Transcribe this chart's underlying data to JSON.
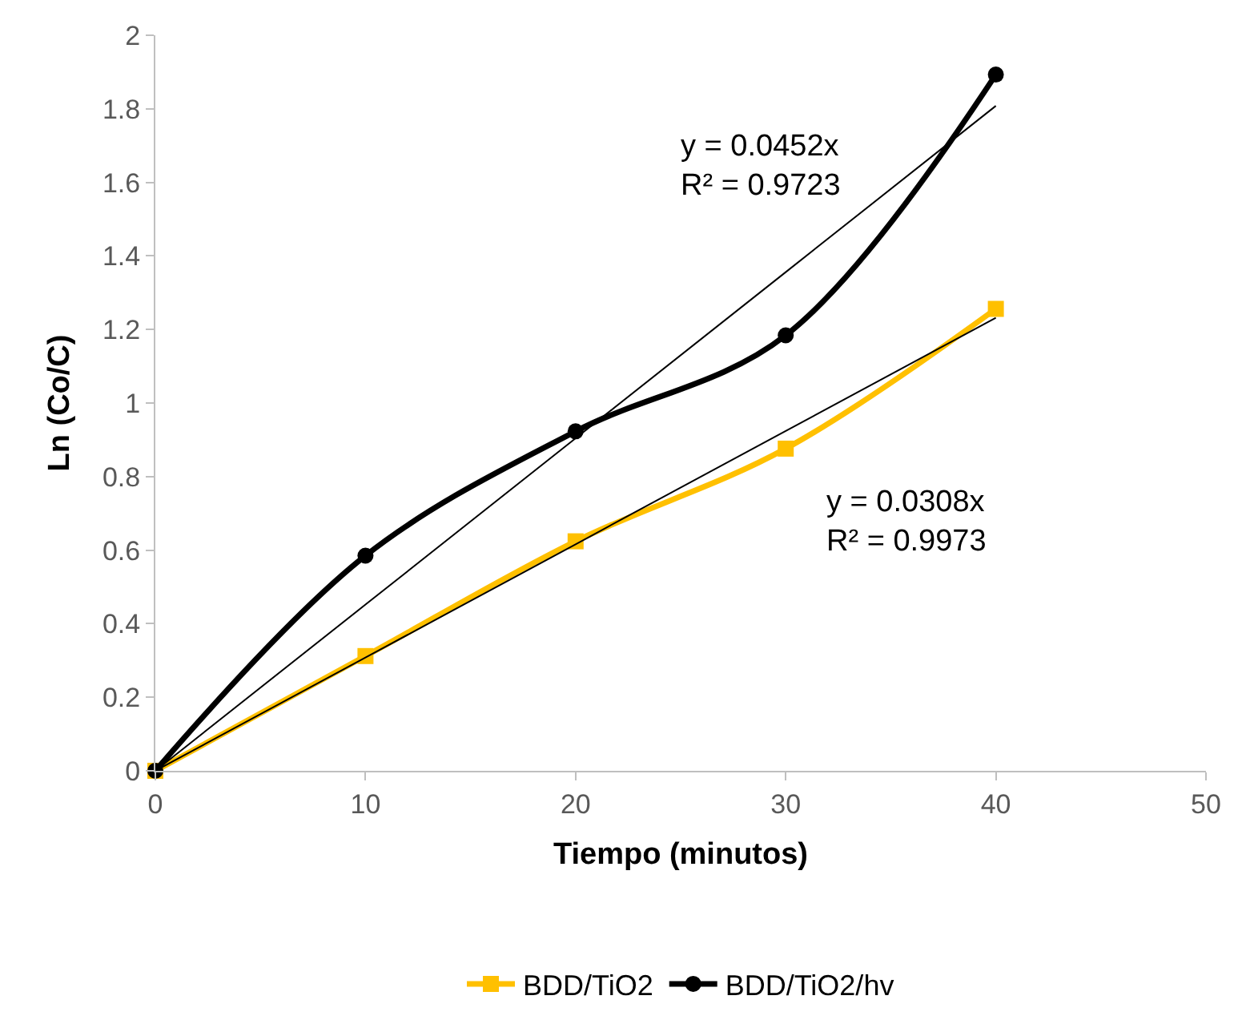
{
  "chart_data": {
    "type": "line",
    "xlabel": "Tiempo (minutos)",
    "ylabel": "Ln (Co/C)",
    "x": [
      0,
      10,
      20,
      30,
      40
    ],
    "series": [
      {
        "name": "BDD/TiO2",
        "color": "#ffc000",
        "values": [
          0,
          0.312,
          0.624,
          0.876,
          1.256
        ],
        "marker": "square"
      },
      {
        "name": "BDD/TiO2/hv",
        "color": "#000000",
        "values": [
          0,
          0.585,
          0.923,
          1.184,
          1.893
        ],
        "marker": "circle"
      },
      {
        "type": "line",
        "color": "#000000",
        "values": [
          0,
          0.308,
          0.616,
          0.924,
          1.232
        ],
        "marker": "none"
      },
      {
        "type": "line",
        "color": "#000000",
        "values": [
          0,
          0.452,
          0.904,
          1.356,
          1.808
        ],
        "marker": "none"
      }
    ],
    "annotations": [
      "y = 0.0452x\nR² = 0.9723",
      "y = 0.0308x\nR² = 0.9973"
    ],
    "xlim": [
      0,
      50
    ],
    "xticks": [
      0,
      10,
      20,
      30,
      40,
      50
    ],
    "ylim": [
      0,
      2
    ],
    "yticks": [
      0,
      0.2,
      0.4,
      0.6,
      0.8,
      1,
      1.2,
      1.4,
      1.6,
      1.8,
      2
    ],
    "legend": "bottom"
  }
}
